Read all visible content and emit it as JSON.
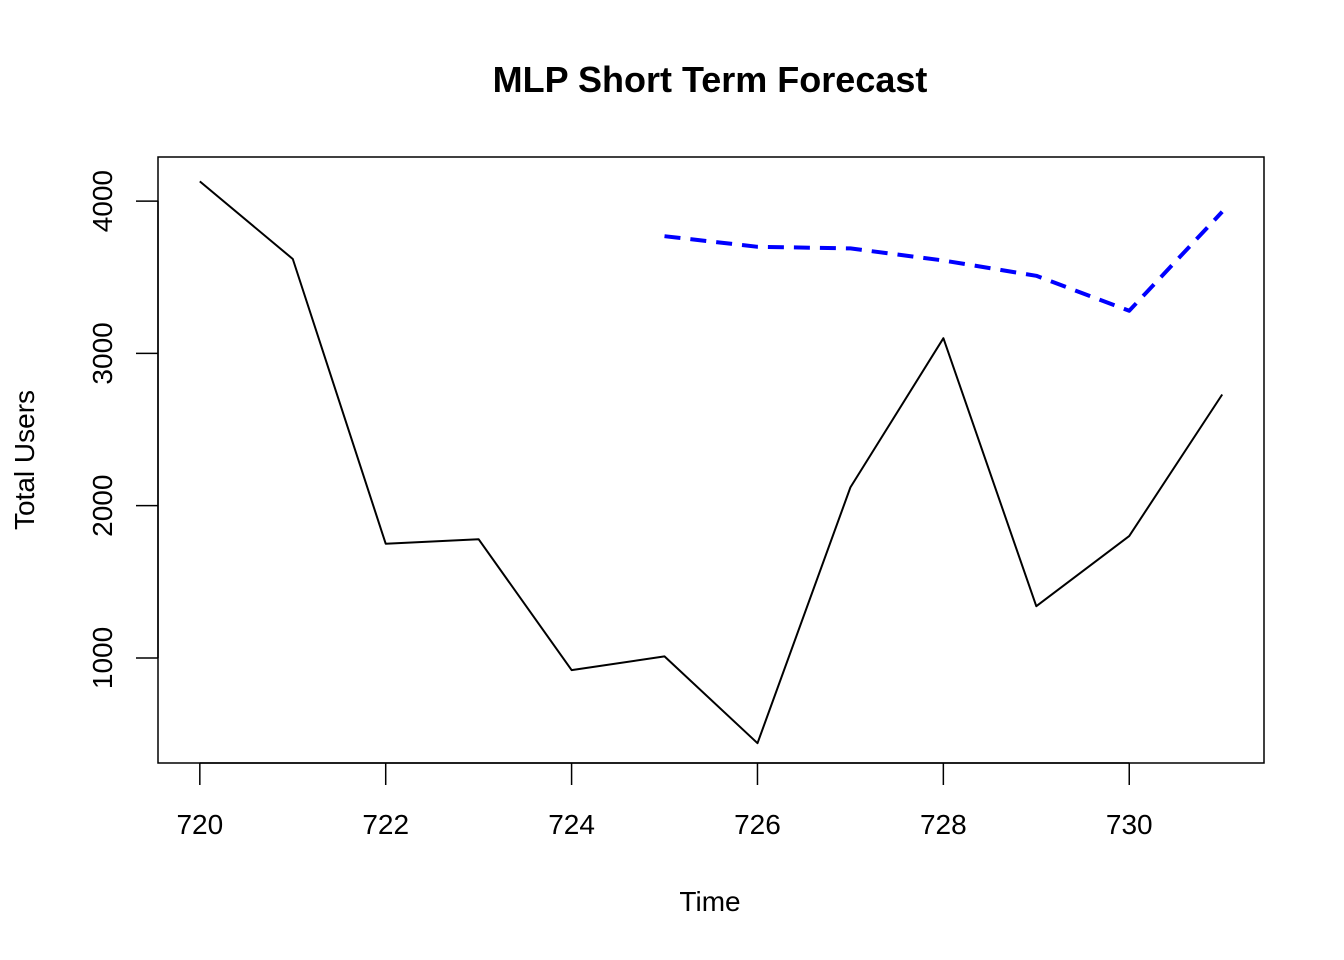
{
  "chart_data": {
    "type": "line",
    "title": "MLP Short Term Forecast",
    "xlabel": "Time",
    "ylabel": "Total Users",
    "xlim": [
      719.55,
      731.45
    ],
    "ylim": [
      310,
      4290
    ],
    "x_ticks": [
      720,
      722,
      724,
      726,
      728,
      730
    ],
    "y_ticks": [
      1000,
      2000,
      3000,
      4000
    ],
    "grid": false,
    "series": [
      {
        "color": "#000000",
        "style": "solid",
        "x": [
          720,
          721,
          722,
          723,
          724,
          725,
          726,
          727,
          728,
          729,
          730,
          731
        ],
        "values": [
          4130,
          3620,
          1750,
          1780,
          920,
          1010,
          440,
          2120,
          3100,
          1340,
          1800,
          2730
        ]
      },
      {
        "color": "#0000FF",
        "style": "dashed",
        "x": [
          725,
          726,
          727,
          728,
          729,
          730,
          731
        ],
        "values": [
          3770,
          3700,
          3690,
          3610,
          3510,
          3280,
          3930
        ]
      }
    ]
  }
}
